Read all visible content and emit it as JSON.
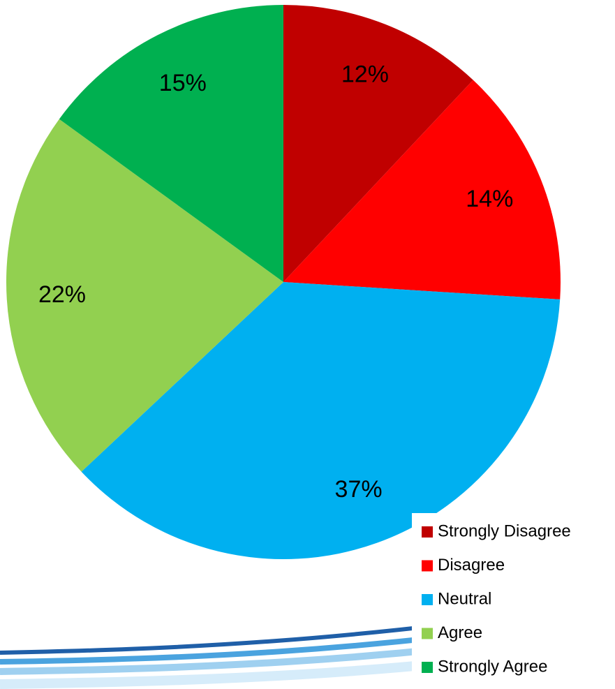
{
  "chart_data": {
    "type": "pie",
    "categories": [
      "Strongly Disagree",
      "Disagree",
      "Neutral",
      "Agree",
      "Strongly Agree"
    ],
    "values": [
      12,
      14,
      37,
      22,
      15
    ],
    "value_labels": [
      "12%",
      "14%",
      "37%",
      "22%",
      "15%"
    ],
    "colors": [
      "#c00000",
      "#ff0000",
      "#00b0f0",
      "#92d050",
      "#00b050"
    ],
    "legend": "bottom-right"
  }
}
